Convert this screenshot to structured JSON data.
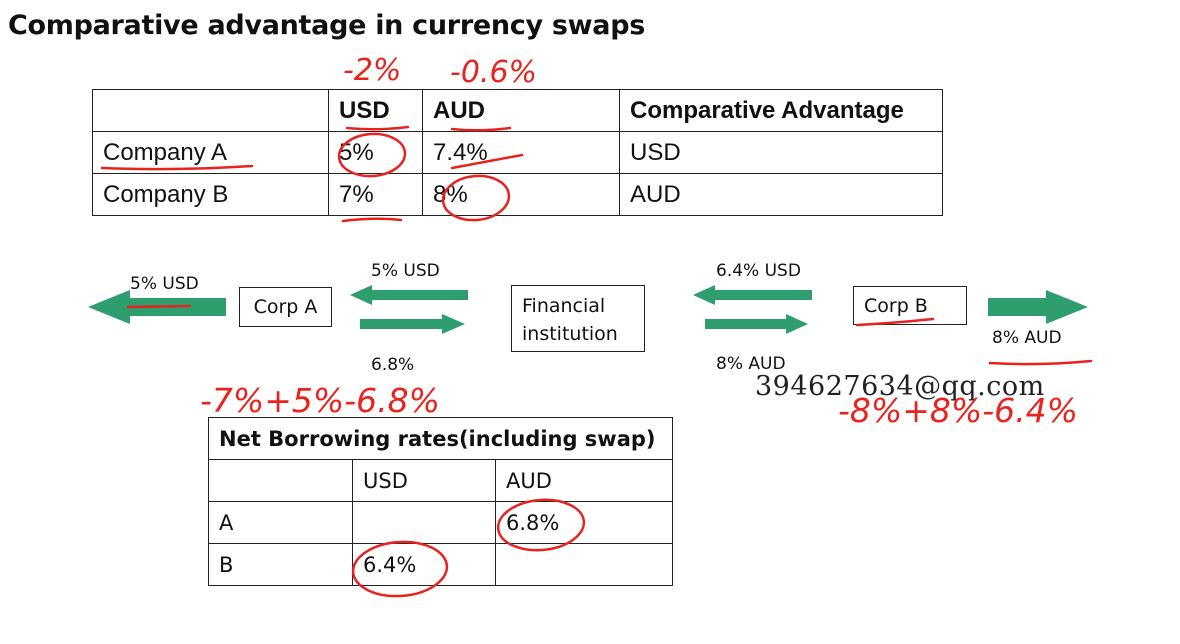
{
  "title": "Comparative advantage in  currency swaps",
  "table1": {
    "headers": [
      "",
      "USD",
      "AUD",
      "Comparative Advantage"
    ],
    "rows": [
      [
        "Company A",
        "5%",
        "7.4%",
        "USD"
      ],
      [
        "Company B",
        "7%",
        "8%",
        "AUD"
      ]
    ]
  },
  "diagram": {
    "corp_a": "Corp A",
    "fi_line1": "Financial",
    "fi_line2": "institution",
    "corp_b": "Corp B",
    "left_out_label": "5% USD",
    "a_fi_top_label": "5% USD",
    "a_fi_bottom_label": "6.8%",
    "fi_b_top_label": "6.4% USD",
    "fi_b_bottom_label": "8% AUD",
    "right_out_label": "8% AUD",
    "arrow_color": "#2e9e6e"
  },
  "table2": {
    "title": "Net Borrowing rates(including swap)",
    "headers": [
      "",
      "USD",
      "AUD"
    ],
    "rows": [
      [
        "A",
        "",
        "6.8%"
      ],
      [
        "B",
        "6.4%",
        ""
      ]
    ]
  },
  "annotations": {
    "above_usd": "-2%",
    "above_aud": "-0.6%",
    "calc_a": "-7%+5%-6.8%",
    "calc_b": "-8%+8%-6.4%",
    "ink_color": "#e8231e"
  },
  "watermark": "394627634@qq.com"
}
